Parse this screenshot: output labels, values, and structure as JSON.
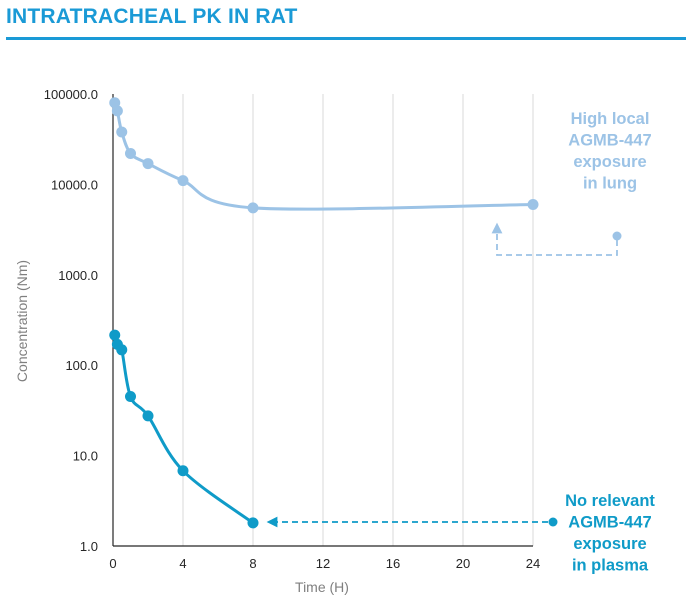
{
  "header": {
    "title": "INTRATRACHEAL PK IN RAT"
  },
  "colors": {
    "title": "#1a9ad6",
    "lung": "#9cc3e6",
    "plasma": "#0f9bc8",
    "grid": "#d9d9d9",
    "axis": "#262626"
  },
  "chart_data": {
    "type": "line",
    "title": "INTRATRACHEAL PK IN RAT",
    "xlabel": "Time (H)",
    "ylabel": "Concentration (Nm)",
    "xlim": [
      0,
      24
    ],
    "ylim": [
      1,
      100000
    ],
    "yscale": "log",
    "xticks": [
      0,
      4,
      8,
      12,
      16,
      20,
      24
    ],
    "xtick_labels": [
      "0",
      "4",
      "8",
      "12",
      "16",
      "20",
      "24"
    ],
    "yticks": [
      1,
      10,
      100,
      1000,
      10000,
      100000
    ],
    "ytick_labels": [
      "1.0",
      "10.0",
      "100.0",
      "1000.0",
      "10000.0",
      "100000.0"
    ],
    "grid": "vertical",
    "series": [
      {
        "name": "lung",
        "x": [
          0.1,
          0.25,
          0.5,
          1,
          2,
          4,
          8,
          24
        ],
        "y": [
          80000,
          65000,
          38000,
          22000,
          17000,
          11000,
          5500,
          6000
        ]
      },
      {
        "name": "plasma",
        "x": [
          0.1,
          0.25,
          0.5,
          1,
          2,
          4,
          8
        ],
        "y": [
          215,
          170,
          148,
          45,
          27.5,
          6.8,
          1.8
        ]
      }
    ],
    "annotations": [
      {
        "series": "lung",
        "lines": [
          "High local",
          "AGMB-447",
          "exposure",
          "in lung"
        ]
      },
      {
        "series": "plasma",
        "lines": [
          "No relevant",
          "AGMB-447",
          "exposure",
          "in plasma"
        ]
      }
    ]
  }
}
